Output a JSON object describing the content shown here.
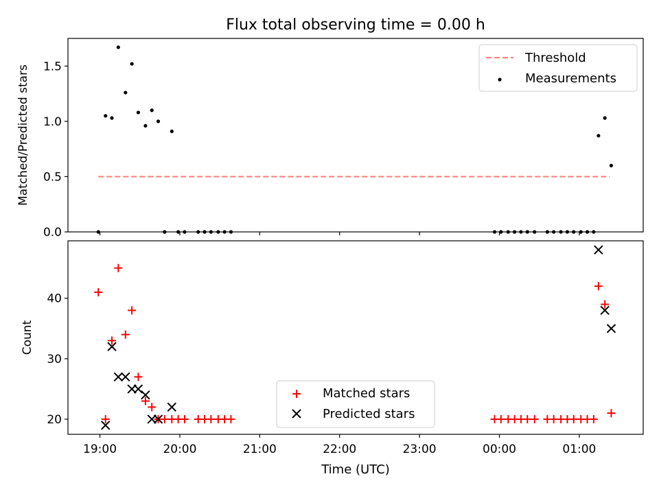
{
  "chart_data": [
    {
      "type": "scatter",
      "title": "Flux total observing time = 0.00 h",
      "xlabel": "",
      "ylabel": "Matched/Predicted stars",
      "xlim": [
        18.6,
        25.8
      ],
      "ylim": [
        0,
        1.75
      ],
      "yticks": [
        0.0,
        0.5,
        1.0,
        1.5
      ],
      "ytick_labels": [
        "0.0",
        "0.5",
        "1.0",
        "1.5"
      ],
      "legend_position": "top-right",
      "legend": [
        "Threshold",
        "Measurements"
      ],
      "series": [
        {
          "name": "Threshold",
          "kind": "dashed-line",
          "color": "#ff7f7f",
          "x": [
            18.98,
            25.38
          ],
          "y": [
            0.5,
            0.5
          ]
        },
        {
          "name": "Measurements",
          "kind": "dots",
          "color": "#000000",
          "x": [
            18.98,
            19.07,
            19.15,
            19.23,
            19.32,
            19.4,
            19.48,
            19.57,
            19.65,
            19.73,
            19.81,
            19.9,
            19.98,
            20.06,
            20.23,
            20.31,
            20.39,
            20.48,
            20.56,
            20.64,
            23.94,
            24.02,
            24.11,
            24.19,
            24.27,
            24.35,
            24.44,
            24.6,
            24.68,
            24.77,
            24.85,
            24.93,
            25.02,
            25.1,
            25.18,
            25.24,
            25.32,
            25.4
          ],
          "y": [
            0.0,
            1.05,
            1.03,
            1.67,
            1.26,
            1.52,
            1.08,
            0.96,
            1.1,
            1.0,
            0.0,
            0.91,
            0.0,
            0.0,
            0.0,
            0.0,
            0.0,
            0.0,
            0.0,
            0.0,
            0.0,
            0.0,
            0.0,
            0.0,
            0.0,
            0.0,
            0.0,
            0.0,
            0.0,
            0.0,
            0.0,
            0.0,
            0.0,
            0.0,
            0.0,
            0.87,
            1.03,
            0.6
          ]
        }
      ]
    },
    {
      "type": "scatter",
      "title": "",
      "xlabel": "Time (UTC)",
      "ylabel": "Count",
      "xlim": [
        18.6,
        25.8
      ],
      "ylim": [
        17.5,
        49.5
      ],
      "yticks": [
        20,
        30,
        40
      ],
      "ytick_labels": [
        "20",
        "30",
        "40"
      ],
      "xticks": [
        19,
        20,
        21,
        22,
        23,
        24,
        25
      ],
      "xtick_labels": [
        "19:00",
        "20:00",
        "21:00",
        "22:00",
        "23:00",
        "00:00",
        "01:00"
      ],
      "legend_position": "lower-center",
      "legend": [
        "Matched stars",
        "Predicted stars"
      ],
      "series": [
        {
          "name": "Matched stars",
          "marker": "plus",
          "color": "#ff0000",
          "x": [
            18.98,
            19.07,
            19.15,
            19.23,
            19.32,
            19.4,
            19.48,
            19.57,
            19.65,
            19.73,
            19.81,
            19.9,
            19.98,
            20.06,
            20.23,
            20.31,
            20.39,
            20.48,
            20.56,
            20.64,
            23.94,
            24.02,
            24.11,
            24.19,
            24.27,
            24.35,
            24.44,
            24.6,
            24.68,
            24.77,
            24.85,
            24.93,
            25.02,
            25.1,
            25.18,
            25.24,
            25.32,
            25.4
          ],
          "y": [
            41,
            20,
            33,
            45,
            34,
            38,
            27,
            23,
            22,
            20,
            20,
            20,
            20,
            20,
            20,
            20,
            20,
            20,
            20,
            20,
            20,
            20,
            20,
            20,
            20,
            20,
            20,
            20,
            20,
            20,
            20,
            20,
            20,
            20,
            20,
            42,
            39,
            21
          ]
        },
        {
          "name": "Predicted stars",
          "marker": "x",
          "color": "#000000",
          "x": [
            19.07,
            19.15,
            19.23,
            19.32,
            19.4,
            19.48,
            19.57,
            19.65,
            19.73,
            19.9,
            25.24,
            25.32,
            25.4
          ],
          "y": [
            19,
            32,
            27,
            27,
            25,
            25,
            24,
            20,
            20,
            22,
            48,
            38,
            35
          ]
        }
      ]
    }
  ]
}
